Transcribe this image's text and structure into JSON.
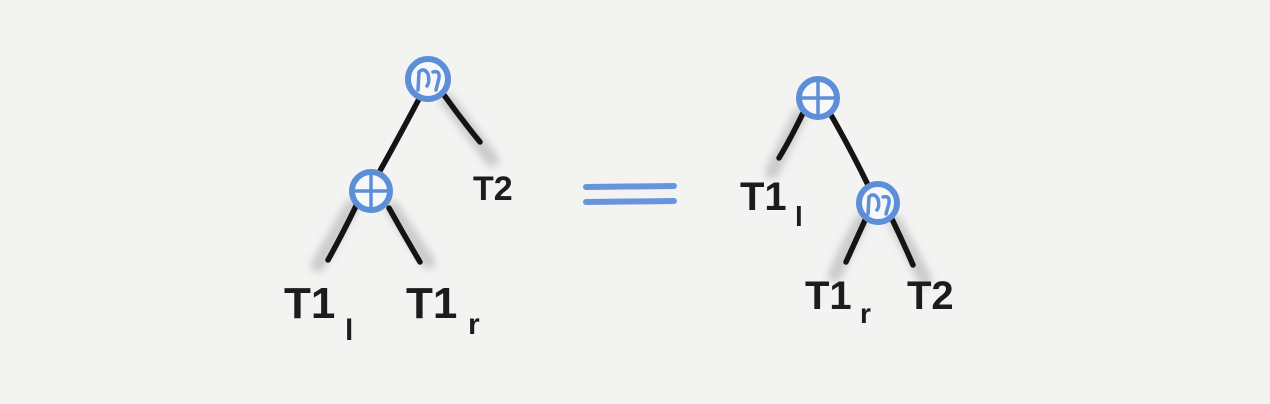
{
  "diagram": {
    "left_tree": {
      "root_op": "join",
      "child_op": "plus",
      "leaves": {
        "t2": "T2",
        "t1l_main": "T1",
        "t1l_sub": "l",
        "t1r_main": "T1",
        "t1r_sub": "r"
      }
    },
    "relation": "equals",
    "right_tree": {
      "root_op": "plus",
      "child_op": "join",
      "leaves": {
        "t1l_main": "T1",
        "t1l_sub": "l",
        "t1r_main": "T1",
        "t1r_sub": "r",
        "t2": "T2"
      }
    },
    "colors": {
      "node_stroke": "#5c8fd8",
      "edge": "#141414",
      "equals": "#6795dc",
      "background": "#f3f3f2"
    },
    "icons": {
      "join_node": "join-node-icon",
      "plus_node": "plus-node-icon",
      "equals_sign": "equals-icon"
    }
  }
}
